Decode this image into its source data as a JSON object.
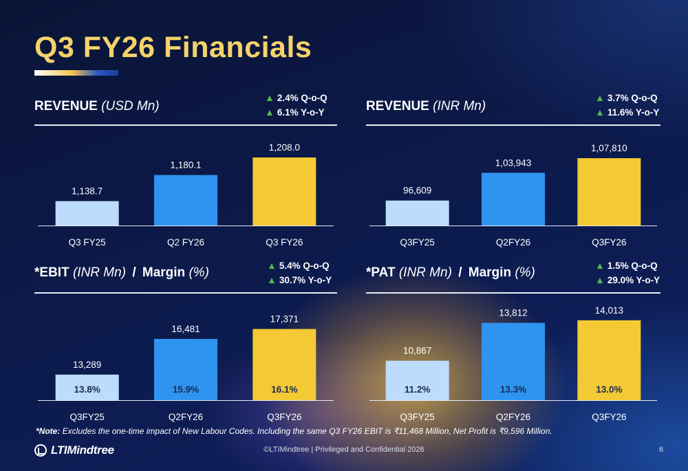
{
  "slide": {
    "title": "Q3 FY26 Financials",
    "note_bold": "*Note:",
    "note_text": " Excludes the one-time impact of New Labour Codes. Including the same Q3 FY26 EBIT is ₹11,468 Million, Net Profit is ₹9,596 Million.",
    "logo_text": "LTIMindtree",
    "footer": "©LTIMindtree | Privileged and Confidential 2026",
    "page_number": "6"
  },
  "panels": [
    {
      "head_main": "REVENUE",
      "head_unit": "(USD Mn)",
      "head_main2": "",
      "head_unit2": "",
      "growth_qoq": "2.4% Q-o-Q",
      "growth_yoy": "6.1% Y-o-Y"
    },
    {
      "head_main": "REVENUE",
      "head_unit": "(INR Mn)",
      "head_main2": "",
      "head_unit2": "",
      "growth_qoq": "3.7% Q-o-Q",
      "growth_yoy": "11.6% Y-o-Y"
    },
    {
      "head_main": "*EBIT",
      "head_unit": "(INR Mn)",
      "head_sep": "/",
      "head_main2": "Margin",
      "head_unit2": "(%)",
      "growth_qoq": "5.4% Q-o-Q",
      "growth_yoy": "30.7% Y-o-Y"
    },
    {
      "head_main": "*PAT",
      "head_unit": "(INR Mn)",
      "head_sep": "/",
      "head_main2": "Margin",
      "head_unit2": "(%)",
      "growth_qoq": "1.5% Q-o-Q",
      "growth_yoy": "29.0% Y-o-Y"
    }
  ],
  "colors": {
    "bar_prev_year": "#bcdcfb",
    "bar_prev_quarter": "#2f94ef",
    "bar_current": "#f3c934",
    "growth_arrow": "#53b84a",
    "title": "#f5d36a",
    "margin_text": "#1a2a55"
  },
  "chart_data": [
    {
      "type": "bar",
      "categories": [
        "Q3 FY25",
        "Q2 FY26",
        "Q3 FY26"
      ],
      "values": [
        1138.7,
        1180.1,
        1208.0
      ],
      "value_labels": [
        "1,138.7",
        "1,180.1",
        "1,208.0"
      ],
      "ylim": [
        1100,
        1220
      ]
    },
    {
      "type": "bar",
      "categories": [
        "Q3FY25",
        "Q2FY26",
        "Q3FY26"
      ],
      "values": [
        96609,
        103943,
        107810
      ],
      "value_labels": [
        "96,609",
        "1,03,943",
        "1,07,810"
      ],
      "ylim": [
        90000,
        110000
      ]
    },
    {
      "type": "bar",
      "categories": [
        "Q3FY25",
        "Q2FY26",
        "Q3FY26"
      ],
      "values": [
        13289,
        16481,
        17371
      ],
      "value_labels": [
        "13,289",
        "16,481",
        "17,371"
      ],
      "inner_labels": [
        "13.8%",
        "15.9%",
        "16.1%"
      ],
      "ylim": [
        11000,
        19000
      ]
    },
    {
      "type": "bar",
      "categories": [
        "Q3FY25",
        "Q2FY26",
        "Q3FY26"
      ],
      "values": [
        10867,
        13812,
        14013
      ],
      "value_labels": [
        "10,867",
        "13,812",
        "14,013"
      ],
      "inner_labels": [
        "11.2%",
        "13.3%",
        "13.0%"
      ],
      "ylim": [
        7800,
        14750
      ]
    }
  ]
}
